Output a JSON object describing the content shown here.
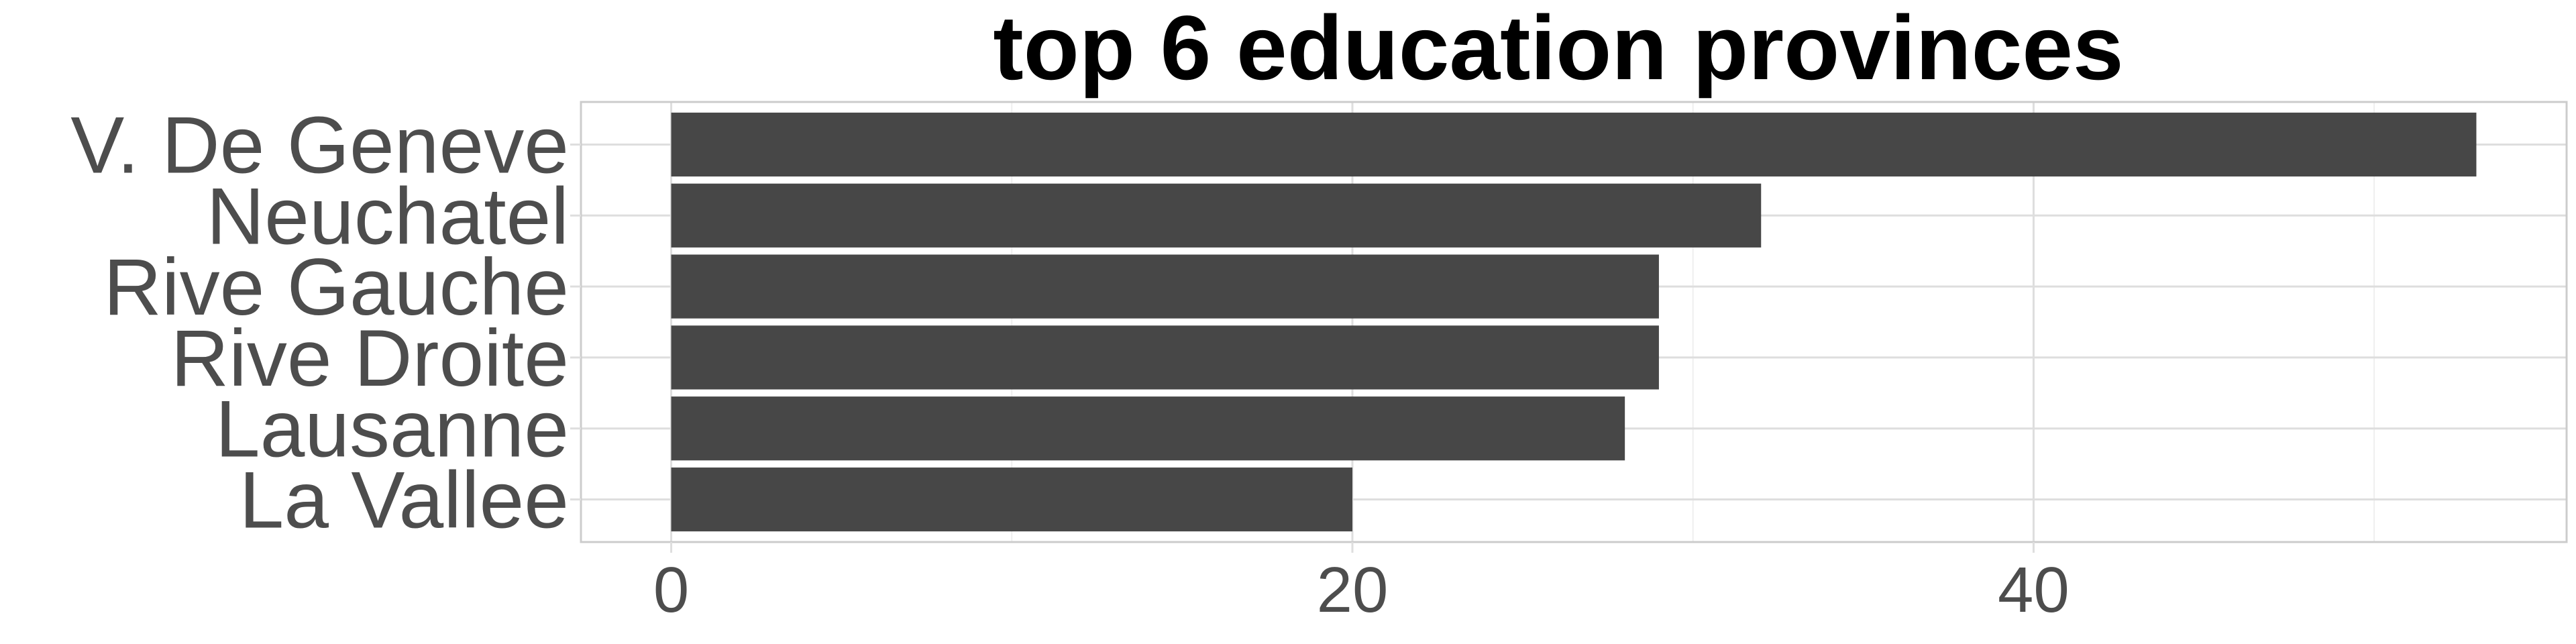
{
  "chart_data": {
    "type": "bar",
    "orientation": "horizontal",
    "title": "top 6 education provinces",
    "categories": [
      "V. De Geneve",
      "Neuchatel",
      "Rive Gauche",
      "Rive Droite",
      "Lausanne",
      "La Vallee"
    ],
    "values": [
      53,
      32,
      29,
      29,
      28,
      20
    ],
    "xlim": [
      -2.65,
      55.65
    ],
    "ticks": [
      0,
      20,
      40
    ],
    "tick_labels": [
      "0",
      "20",
      "40"
    ],
    "grid": true,
    "colors": {
      "bar": "#474747",
      "grid_major": "#dedede",
      "grid_minor": "#efefef",
      "panel_border": "#cccccc",
      "text": "#4d4d4d",
      "title": "#000000"
    }
  }
}
